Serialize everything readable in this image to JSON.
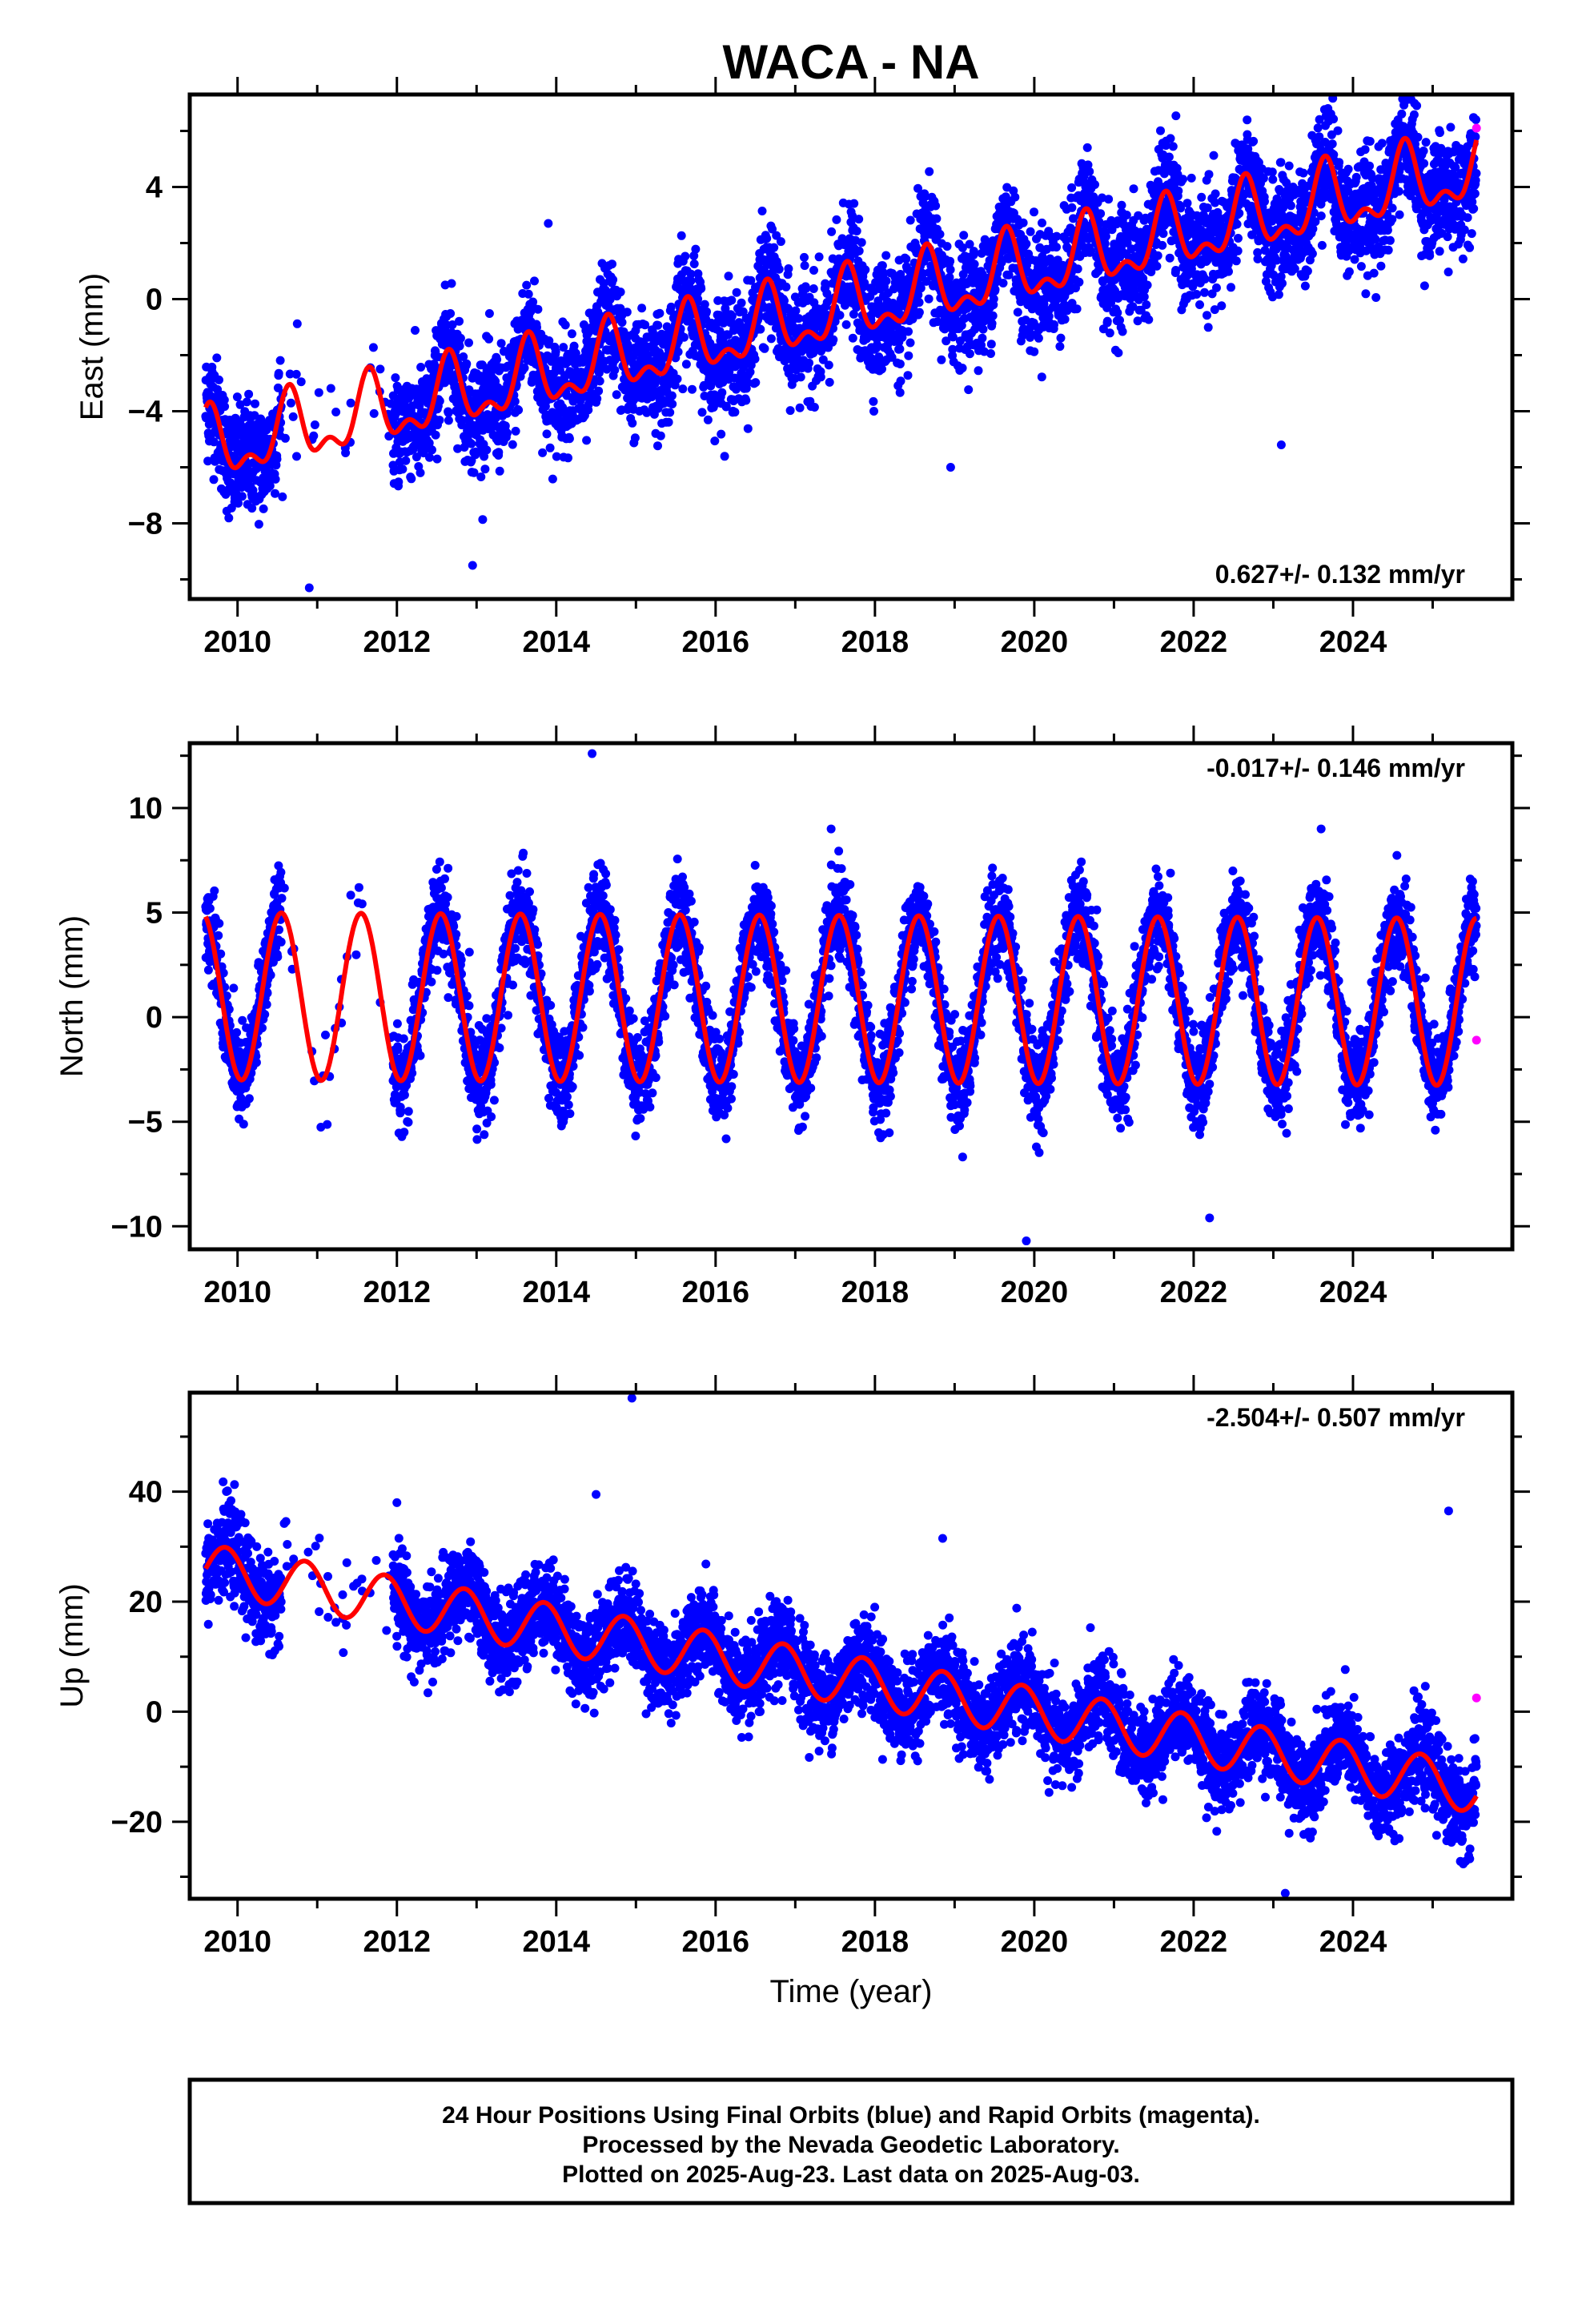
{
  "chart_data": {
    "type": "scatter",
    "title": "WACA - NA",
    "xlabel": "Time (year)",
    "xlim": [
      2009.4,
      2026.0
    ],
    "x_ticks": [
      "2010",
      "2012",
      "2014",
      "2016",
      "2018",
      "2020",
      "2022",
      "2024"
    ],
    "legend_note": "blue dots = daily positions (final orbits), magenta dots = rapid orbits, red line = model fit",
    "colors": {
      "final": "#0000ff",
      "rapid": "#ff00ff",
      "model": "#ff0000"
    },
    "panels": [
      {
        "name": "east",
        "ylabel": "East (mm)",
        "ylim": [
          -10.7,
          7.3
        ],
        "y_ticks": [
          -8,
          -4,
          0,
          4
        ],
        "rate": "0.627+/- 0.132 mm/yr",
        "rate_position": "bottom-right",
        "model": {
          "intercept": -5.4,
          "t0": 2009.6,
          "slope": 0.627,
          "annual_amplitude": 1.1,
          "annual_phase_peak": 0.65,
          "semiannual_amplitude": 0.6,
          "noise_sd": 1.0
        },
        "rapid_point": {
          "x": 2025.55,
          "y": 6.1
        },
        "outliers": [
          {
            "x": 2010.9,
            "y": -10.3
          },
          {
            "x": 2012.95,
            "y": -9.5
          },
          {
            "x": 2013.9,
            "y": 2.7
          },
          {
            "x": 2018.95,
            "y": -6.0
          },
          {
            "x": 2023.1,
            "y": -5.2
          },
          {
            "x": 2024.8,
            "y": 6.9
          }
        ]
      },
      {
        "name": "north",
        "ylabel": "North (mm)",
        "ylim": [
          -11.1,
          13.1
        ],
        "y_ticks": [
          -10,
          -5,
          0,
          5,
          10
        ],
        "rate": "-0.017+/- 0.146 mm/yr",
        "rate_position": "top-right",
        "model": {
          "intercept": 1.0,
          "t0": 2009.6,
          "slope": -0.017,
          "annual_amplitude": 4.0,
          "annual_phase_peak": 0.55,
          "semiannual_amplitude": 0.0,
          "noise_sd": 1.1
        },
        "rapid_point": {
          "x": 2025.55,
          "y": -1.1
        },
        "outliers": [
          {
            "x": 2014.45,
            "y": 12.6
          },
          {
            "x": 2019.9,
            "y": -10.7
          },
          {
            "x": 2022.2,
            "y": -9.6
          },
          {
            "x": 2017.45,
            "y": 9.0
          },
          {
            "x": 2023.6,
            "y": 9.0
          }
        ]
      },
      {
        "name": "up",
        "ylabel": "Up (mm)",
        "ylim": [
          -34.0,
          58.0
        ],
        "y_ticks": [
          -20,
          0,
          20,
          40
        ],
        "rate": "-2.504+/- 0.507 mm/yr",
        "rate_position": "top-right",
        "model": {
          "intercept": 26.0,
          "t0": 2009.6,
          "slope": -2.504,
          "annual_amplitude": 4.5,
          "annual_phase_peak": 0.85,
          "semiannual_amplitude": 0.0,
          "noise_sd": 4.0
        },
        "rapid_point": {
          "x": 2025.55,
          "y": 2.5
        },
        "outliers": [
          {
            "x": 2014.95,
            "y": 57.0
          },
          {
            "x": 2025.2,
            "y": 36.5
          },
          {
            "x": 2014.5,
            "y": 39.5
          },
          {
            "x": 2018.85,
            "y": 31.5
          },
          {
            "x": 2023.15,
            "y": -33.0
          },
          {
            "x": 2012.0,
            "y": 38.0
          }
        ]
      }
    ],
    "data_gaps": [
      [
        2010.55,
        2011.95
      ]
    ]
  },
  "footer": {
    "line1": "24 Hour Positions Using Final Orbits (blue) and Rapid Orbits (magenta).",
    "line2": "Processed by the Nevada Geodetic Laboratory.",
    "line3": "Plotted on 2025-Aug-23. Last data on 2025-Aug-03."
  }
}
